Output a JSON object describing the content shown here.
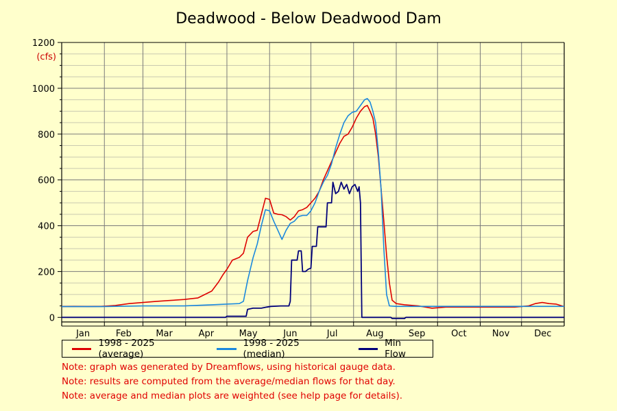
{
  "chart_data": {
    "type": "line",
    "title": "Deadwood - Below Deadwood Dam",
    "ylabel_unit": "(cfs)",
    "ylim": [
      -20,
      1200
    ],
    "yticks": [
      0,
      200,
      400,
      600,
      800,
      1000,
      1200
    ],
    "xlim": [
      1,
      366
    ],
    "grid": true,
    "legend_position": "bottom",
    "months": [
      {
        "label": "Jan",
        "start": 1,
        "end": 32
      },
      {
        "label": "Feb",
        "start": 32,
        "end": 60
      },
      {
        "label": "Mar",
        "start": 60,
        "end": 91
      },
      {
        "label": "Apr",
        "start": 91,
        "end": 121
      },
      {
        "label": "May",
        "start": 121,
        "end": 152
      },
      {
        "label": "Jun",
        "start": 152,
        "end": 182
      },
      {
        "label": "Jul",
        "start": 182,
        "end": 213
      },
      {
        "label": "Aug",
        "start": 213,
        "end": 244
      },
      {
        "label": "Sep",
        "start": 244,
        "end": 274
      },
      {
        "label": "Oct",
        "start": 274,
        "end": 305
      },
      {
        "label": "Nov",
        "start": 305,
        "end": 335
      },
      {
        "label": "Dec",
        "start": 335,
        "end": 366
      }
    ],
    "series": [
      {
        "name": "1998 - 2025 (average)",
        "color": "#dd0000",
        "points": [
          [
            1,
            47
          ],
          [
            10,
            48
          ],
          [
            20,
            47
          ],
          [
            30,
            48
          ],
          [
            40,
            52
          ],
          [
            50,
            60
          ],
          [
            60,
            65
          ],
          [
            70,
            70
          ],
          [
            80,
            74
          ],
          [
            90,
            78
          ],
          [
            100,
            85
          ],
          [
            110,
            115
          ],
          [
            115,
            155
          ],
          [
            118,
            185
          ],
          [
            121,
            210
          ],
          [
            125,
            250
          ],
          [
            130,
            262
          ],
          [
            133,
            280
          ],
          [
            136,
            350
          ],
          [
            140,
            375
          ],
          [
            143,
            380
          ],
          [
            146,
            450
          ],
          [
            149,
            520
          ],
          [
            152,
            515
          ],
          [
            155,
            455
          ],
          [
            158,
            450
          ],
          [
            161,
            448
          ],
          [
            164,
            440
          ],
          [
            167,
            425
          ],
          [
            170,
            440
          ],
          [
            173,
            465
          ],
          [
            176,
            470
          ],
          [
            179,
            480
          ],
          [
            182,
            500
          ],
          [
            185,
            520
          ],
          [
            188,
            550
          ],
          [
            191,
            600
          ],
          [
            194,
            640
          ],
          [
            197,
            680
          ],
          [
            200,
            720
          ],
          [
            203,
            760
          ],
          [
            206,
            790
          ],
          [
            209,
            800
          ],
          [
            212,
            830
          ],
          [
            215,
            870
          ],
          [
            218,
            900
          ],
          [
            221,
            920
          ],
          [
            223,
            925
          ],
          [
            225,
            900
          ],
          [
            227,
            870
          ],
          [
            229,
            800
          ],
          [
            231,
            700
          ],
          [
            233,
            560
          ],
          [
            235,
            420
          ],
          [
            237,
            270
          ],
          [
            239,
            150
          ],
          [
            241,
            75
          ],
          [
            244,
            60
          ],
          [
            250,
            55
          ],
          [
            260,
            50
          ],
          [
            270,
            40
          ],
          [
            280,
            45
          ],
          [
            290,
            45
          ],
          [
            300,
            45
          ],
          [
            310,
            45
          ],
          [
            320,
            45
          ],
          [
            330,
            45
          ],
          [
            340,
            50
          ],
          [
            345,
            60
          ],
          [
            350,
            65
          ],
          [
            355,
            60
          ],
          [
            360,
            58
          ],
          [
            366,
            47
          ]
        ]
      },
      {
        "name": "1998 - 2025 (median)",
        "color": "#1a88dd",
        "points": [
          [
            1,
            47
          ],
          [
            30,
            47
          ],
          [
            60,
            50
          ],
          [
            90,
            50
          ],
          [
            110,
            55
          ],
          [
            121,
            58
          ],
          [
            130,
            60
          ],
          [
            133,
            70
          ],
          [
            136,
            160
          ],
          [
            140,
            260
          ],
          [
            143,
            320
          ],
          [
            146,
            400
          ],
          [
            149,
            470
          ],
          [
            152,
            465
          ],
          [
            155,
            420
          ],
          [
            158,
            380
          ],
          [
            161,
            340
          ],
          [
            164,
            380
          ],
          [
            167,
            410
          ],
          [
            170,
            420
          ],
          [
            173,
            440
          ],
          [
            176,
            445
          ],
          [
            179,
            445
          ],
          [
            182,
            465
          ],
          [
            185,
            500
          ],
          [
            188,
            550
          ],
          [
            191,
            590
          ],
          [
            194,
            620
          ],
          [
            197,
            670
          ],
          [
            200,
            740
          ],
          [
            203,
            800
          ],
          [
            206,
            850
          ],
          [
            209,
            880
          ],
          [
            212,
            895
          ],
          [
            215,
            900
          ],
          [
            218,
            925
          ],
          [
            221,
            950
          ],
          [
            223,
            955
          ],
          [
            225,
            940
          ],
          [
            227,
            900
          ],
          [
            229,
            850
          ],
          [
            231,
            720
          ],
          [
            233,
            560
          ],
          [
            235,
            300
          ],
          [
            237,
            100
          ],
          [
            239,
            50
          ],
          [
            244,
            48
          ],
          [
            366,
            48
          ]
        ]
      },
      {
        "name": "Min Flow",
        "color": "#00007a",
        "points": [
          [
            1,
            0
          ],
          [
            120,
            0
          ],
          [
            121,
            5
          ],
          [
            135,
            5
          ],
          [
            136,
            35
          ],
          [
            140,
            40
          ],
          [
            146,
            40
          ],
          [
            150,
            45
          ],
          [
            153,
            48
          ],
          [
            160,
            50
          ],
          [
            166,
            50
          ],
          [
            167,
            70
          ],
          [
            168,
            250
          ],
          [
            172,
            250
          ],
          [
            173,
            290
          ],
          [
            175,
            290
          ],
          [
            176,
            200
          ],
          [
            178,
            200
          ],
          [
            180,
            210
          ],
          [
            182,
            215
          ],
          [
            183,
            310
          ],
          [
            186,
            310
          ],
          [
            187,
            395
          ],
          [
            189,
            395
          ],
          [
            193,
            395
          ],
          [
            194,
            500
          ],
          [
            197,
            500
          ],
          [
            198,
            590
          ],
          [
            200,
            540
          ],
          [
            202,
            550
          ],
          [
            204,
            590
          ],
          [
            206,
            560
          ],
          [
            208,
            580
          ],
          [
            210,
            540
          ],
          [
            212,
            570
          ],
          [
            214,
            580
          ],
          [
            216,
            550
          ],
          [
            217,
            570
          ],
          [
            218,
            500
          ],
          [
            219,
            0
          ],
          [
            240,
            0
          ],
          [
            241,
            -5
          ],
          [
            250,
            -5
          ],
          [
            251,
            0
          ],
          [
            366,
            0
          ]
        ]
      }
    ]
  },
  "notes": [
    "Note: graph was generated by Dreamflows, using historical gauge data.",
    "Note: results are computed from the average/median flows for that day.",
    "Note: average and median plots are weighted (see help page for details)."
  ]
}
